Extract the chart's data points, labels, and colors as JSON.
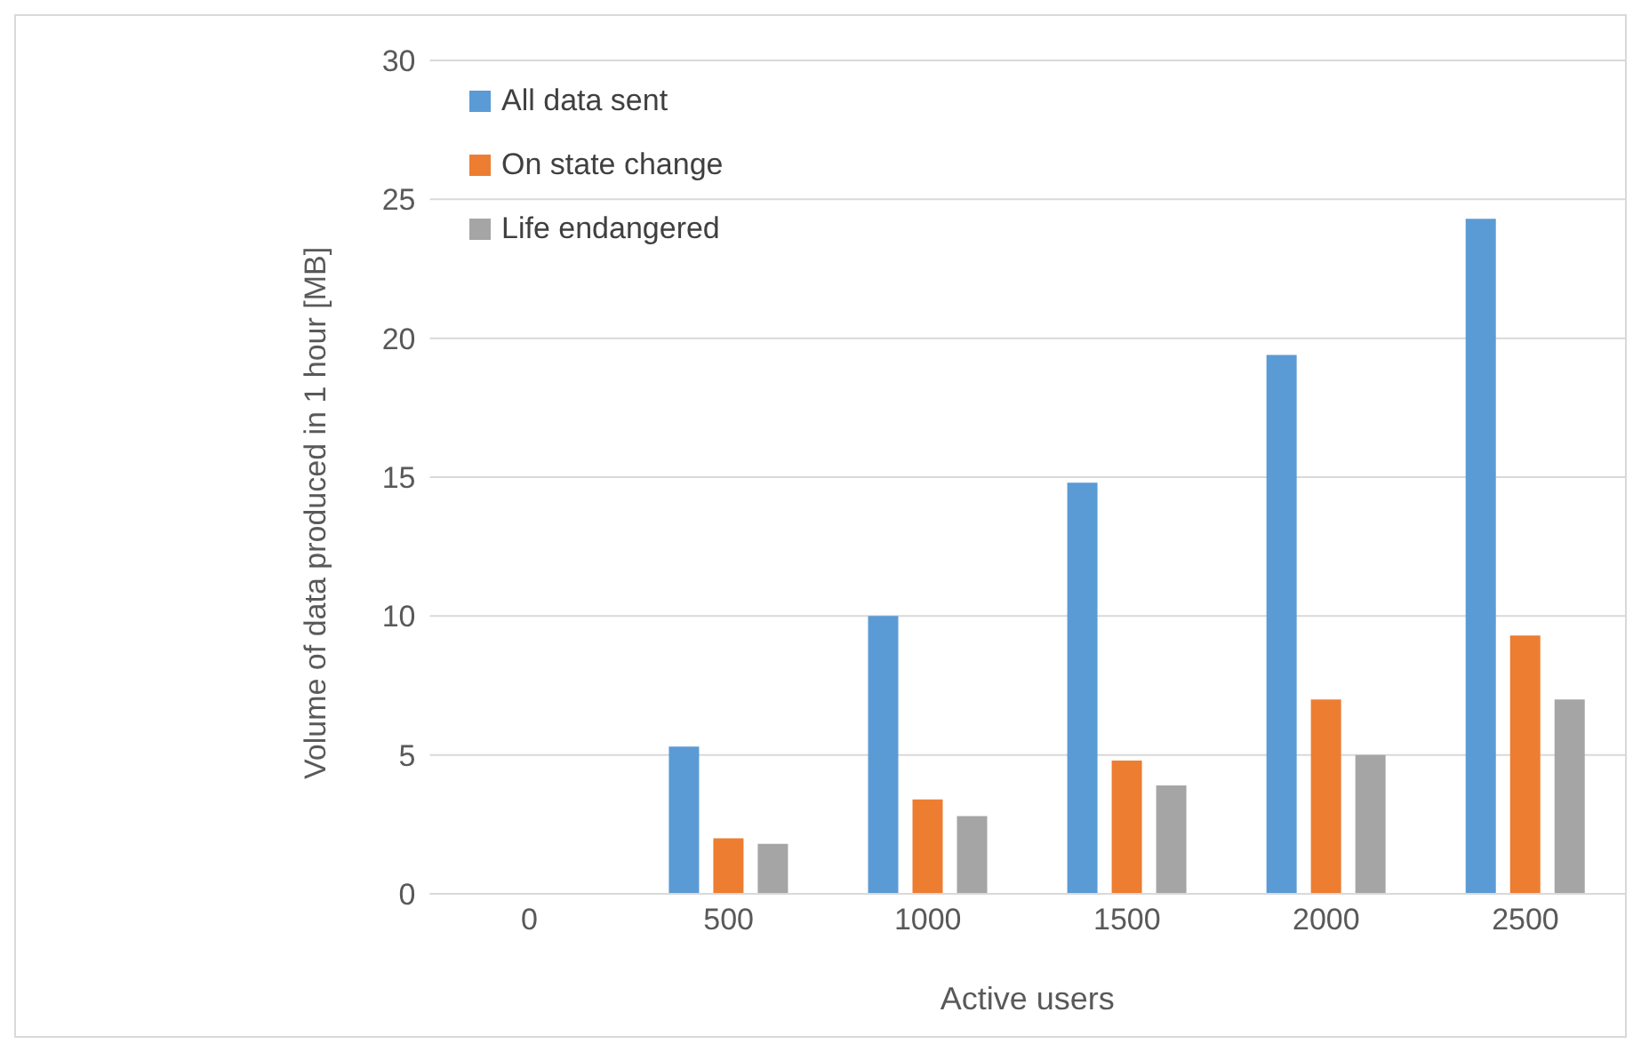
{
  "chart_data": {
    "type": "bar",
    "xlabel": "Active users",
    "ylabel": "Volume of data produced in 1 hour [MB]",
    "categories": [
      "0",
      "500",
      "1000",
      "1500",
      "2000",
      "2500"
    ],
    "series": [
      {
        "name": "All data sent",
        "color": "#5b9bd5",
        "values": [
          0,
          5.3,
          10.0,
          14.8,
          19.4,
          24.3
        ]
      },
      {
        "name": "On state change",
        "color": "#ed7d31",
        "values": [
          0,
          2.0,
          3.4,
          4.8,
          7.0,
          9.3
        ]
      },
      {
        "name": "Life endangered",
        "color": "#a5a5a5",
        "values": [
          0,
          1.8,
          2.8,
          3.9,
          5.0,
          7.0
        ]
      }
    ],
    "ylim": [
      0,
      30
    ],
    "yticks": [
      0,
      5,
      10,
      15,
      20,
      25,
      30
    ],
    "grid": "y",
    "legend": "top left"
  }
}
